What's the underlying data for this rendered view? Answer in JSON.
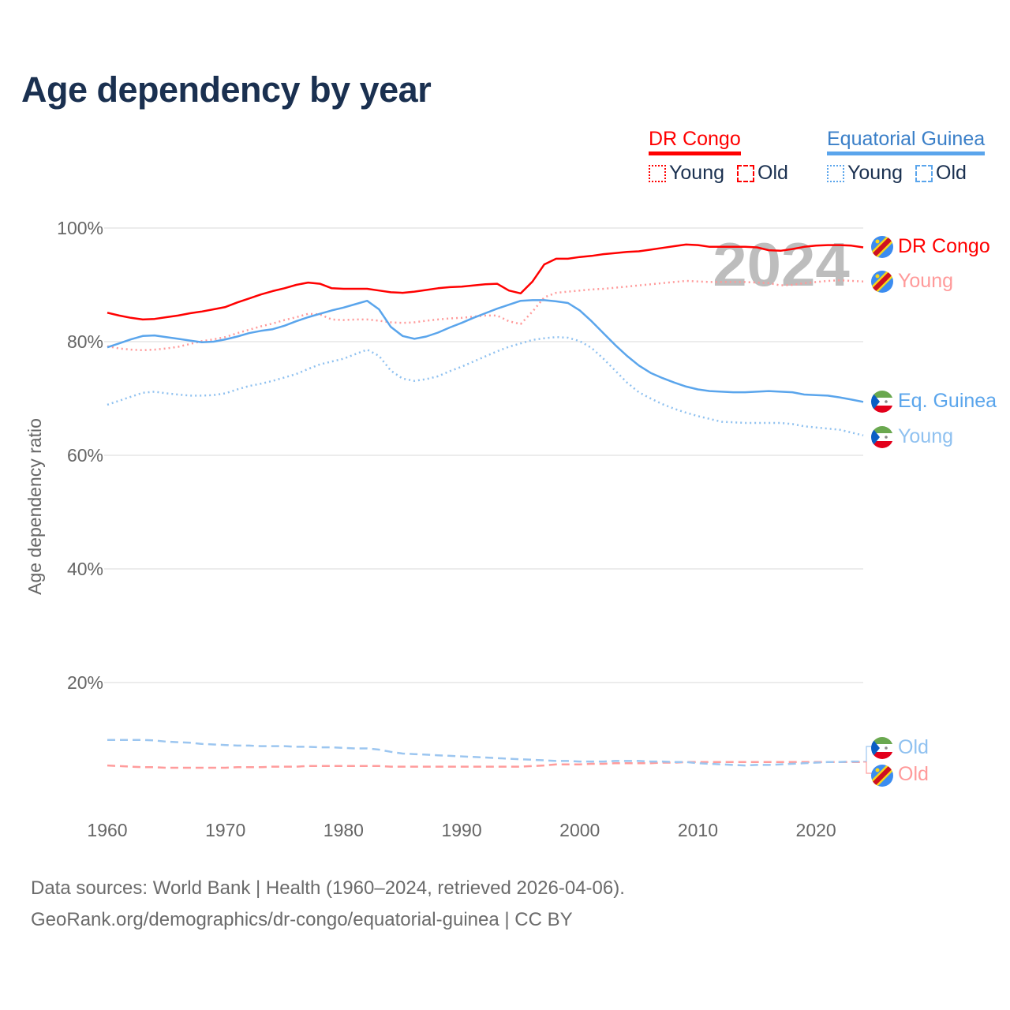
{
  "title": "Age dependency by year",
  "legend": {
    "groups": [
      {
        "name": "DR Congo",
        "color": "#ff0000",
        "young": "Young",
        "old": "Old"
      },
      {
        "name": "Equatorial Guinea",
        "color": "#5aa5ec",
        "young": "Young",
        "old": "Old"
      }
    ]
  },
  "year_watermark": "2024",
  "end_labels": {
    "drc_total": "DR Congo",
    "drc_young": "Young",
    "eqg_total": "Eq. Guinea",
    "eqg_young": "Young",
    "eqg_old": "Old",
    "drc_old": "Old"
  },
  "footer": {
    "line1": "Data sources: World Bank | Health (1960–2024, retrieved 2026-04-06).",
    "line2": "GeoRank.org/demographics/dr-congo/equatorial-guinea | CC BY"
  },
  "chart_data": {
    "type": "line",
    "title": "Age dependency by year",
    "xlabel": "",
    "ylabel": "Age dependency ratio",
    "xlim": [
      1960,
      2024
    ],
    "ylim": [
      0,
      100
    ],
    "x_ticks": [
      1960,
      1970,
      1980,
      1990,
      2000,
      2010,
      2020
    ],
    "y_ticks": [
      {
        "v": 20,
        "label": "20%"
      },
      {
        "v": 40,
        "label": "40%"
      },
      {
        "v": 60,
        "label": "60%"
      },
      {
        "v": 80,
        "label": "80%"
      },
      {
        "v": 100,
        "label": "100%"
      }
    ],
    "grid": true,
    "x_start": 1960,
    "series": [
      {
        "name": "DR Congo",
        "key": "drc_total",
        "style": "solid",
        "color": "#ff0000",
        "values": [
          85.1,
          84.6,
          84.2,
          83.9,
          84.0,
          84.3,
          84.6,
          85.0,
          85.3,
          85.7,
          86.1,
          86.9,
          87.6,
          88.3,
          88.9,
          89.4,
          90.0,
          90.4,
          90.2,
          89.4,
          89.3,
          89.3,
          89.3,
          89.0,
          88.7,
          88.6,
          88.8,
          89.1,
          89.4,
          89.6,
          89.7,
          89.9,
          90.1,
          90.2,
          89.0,
          88.5,
          90.6,
          93.6,
          94.6,
          94.6,
          94.9,
          95.1,
          95.4,
          95.6,
          95.8,
          95.9,
          96.2,
          96.5,
          96.8,
          97.1,
          97.0,
          96.7,
          96.7,
          96.7,
          96.7,
          96.6,
          96.1,
          96.0,
          96.3,
          96.7,
          96.9,
          97.0,
          97.0,
          96.9,
          96.6
        ]
      },
      {
        "name": "DR Congo Young",
        "key": "drc_young",
        "style": "dotted",
        "color": "#ff9a9a",
        "values": [
          79.2,
          78.8,
          78.6,
          78.5,
          78.6,
          78.8,
          79.1,
          79.6,
          80.1,
          80.4,
          80.8,
          81.5,
          82.1,
          82.7,
          83.2,
          83.8,
          84.3,
          84.9,
          84.8,
          83.9,
          83.8,
          83.9,
          83.9,
          83.7,
          83.4,
          83.3,
          83.4,
          83.7,
          83.9,
          84.1,
          84.2,
          84.4,
          84.6,
          84.6,
          83.6,
          83.1,
          85.3,
          87.8,
          88.6,
          88.8,
          89.0,
          89.2,
          89.3,
          89.5,
          89.7,
          89.9,
          90.1,
          90.3,
          90.5,
          90.7,
          90.6,
          90.5,
          90.5,
          90.5,
          90.5,
          90.4,
          90.3,
          89.9,
          90.0,
          90.3,
          90.5,
          90.7,
          90.8,
          90.7,
          90.6
        ]
      },
      {
        "name": "DR Congo Old",
        "key": "drc_old",
        "style": "dashed",
        "color": "#ff9c9c",
        "values": [
          5.4,
          5.3,
          5.2,
          5.1,
          5.1,
          5.0,
          5.0,
          5.0,
          5.0,
          5.0,
          5.0,
          5.1,
          5.1,
          5.1,
          5.2,
          5.2,
          5.2,
          5.3,
          5.3,
          5.3,
          5.3,
          5.3,
          5.3,
          5.3,
          5.2,
          5.2,
          5.2,
          5.2,
          5.2,
          5.2,
          5.2,
          5.2,
          5.2,
          5.2,
          5.2,
          5.2,
          5.3,
          5.4,
          5.6,
          5.6,
          5.6,
          5.7,
          5.7,
          5.8,
          5.8,
          5.8,
          5.8,
          5.9,
          5.9,
          6.0,
          6.0,
          6.0,
          6.0,
          6.0,
          6.0,
          6.0,
          6.0,
          6.0,
          6.0,
          6.0,
          6.0,
          6.0,
          6.0,
          6.0,
          6.0
        ]
      },
      {
        "name": "Eq. Guinea",
        "key": "eqg_total",
        "style": "solid",
        "color": "#5aa5ec",
        "values": [
          79.0,
          79.7,
          80.4,
          81.0,
          81.1,
          80.8,
          80.5,
          80.2,
          79.9,
          80.0,
          80.4,
          80.9,
          81.5,
          81.9,
          82.2,
          82.8,
          83.6,
          84.3,
          84.9,
          85.5,
          86.0,
          86.6,
          87.2,
          85.7,
          82.6,
          81.0,
          80.5,
          80.9,
          81.6,
          82.5,
          83.3,
          84.2,
          85.0,
          85.8,
          86.5,
          87.2,
          87.3,
          87.3,
          87.1,
          86.8,
          85.5,
          83.6,
          81.5,
          79.4,
          77.5,
          75.8,
          74.5,
          73.6,
          72.8,
          72.1,
          71.6,
          71.3,
          71.2,
          71.1,
          71.1,
          71.2,
          71.3,
          71.2,
          71.1,
          70.7,
          70.6,
          70.5,
          70.2,
          69.8,
          69.4
        ]
      },
      {
        "name": "Eq. Guinea Young",
        "key": "eqg_young",
        "style": "dotted",
        "color": "#8fc1f0",
        "values": [
          68.9,
          69.6,
          70.3,
          71.0,
          71.2,
          70.9,
          70.7,
          70.5,
          70.5,
          70.6,
          70.9,
          71.6,
          72.2,
          72.6,
          73.1,
          73.7,
          74.3,
          75.2,
          76.0,
          76.5,
          77.0,
          77.8,
          78.6,
          77.5,
          74.9,
          73.5,
          73.1,
          73.4,
          73.9,
          74.8,
          75.6,
          76.5,
          77.4,
          78.3,
          79.1,
          79.7,
          80.3,
          80.6,
          80.8,
          80.7,
          80.1,
          78.9,
          77.0,
          74.9,
          72.8,
          71.1,
          70.0,
          69.0,
          68.2,
          67.5,
          66.9,
          66.4,
          65.9,
          65.8,
          65.7,
          65.7,
          65.7,
          65.7,
          65.5,
          65.1,
          64.9,
          64.7,
          64.5,
          64.0,
          63.5
        ]
      },
      {
        "name": "Eq. Guinea Old",
        "key": "eqg_old",
        "style": "dashed",
        "color": "#9cc6f0",
        "values": [
          9.9,
          9.9,
          9.9,
          9.9,
          9.8,
          9.6,
          9.5,
          9.4,
          9.2,
          9.1,
          9.0,
          8.9,
          8.9,
          8.8,
          8.8,
          8.8,
          8.7,
          8.7,
          8.6,
          8.6,
          8.5,
          8.4,
          8.4,
          8.2,
          7.8,
          7.5,
          7.4,
          7.3,
          7.2,
          7.1,
          7.0,
          6.9,
          6.8,
          6.7,
          6.6,
          6.5,
          6.4,
          6.3,
          6.2,
          6.2,
          6.1,
          6.1,
          6.1,
          6.2,
          6.2,
          6.2,
          6.1,
          6.1,
          6.0,
          6.0,
          5.8,
          5.7,
          5.6,
          5.5,
          5.4,
          5.5,
          5.5,
          5.6,
          5.7,
          5.8,
          5.9,
          6.0,
          6.0,
          6.1,
          6.1
        ]
      }
    ]
  }
}
